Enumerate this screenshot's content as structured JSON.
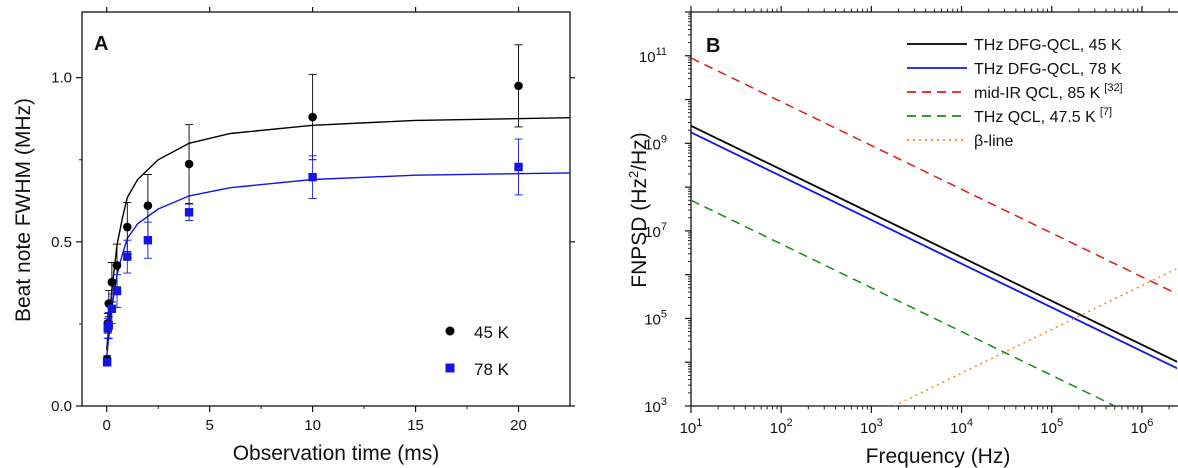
{
  "chart_data": [
    {
      "type": "scatter",
      "panel_label": "A",
      "xlabel": "Observation time (ms)",
      "ylabel": "Beat note FWHM (MHz)",
      "xlim": [
        -1.2,
        22.5
      ],
      "ylim": [
        0.0,
        1.2
      ],
      "xticks": [
        0,
        5,
        10,
        15,
        20
      ],
      "yticks": [
        0.0,
        0.5,
        1.0
      ],
      "ytick_labels": [
        "0.0",
        "0.5",
        "1.0"
      ],
      "legend_position": "bottom-right",
      "series": [
        {
          "name": "45 K",
          "color": "#000000",
          "marker": "circle",
          "x": [
            0.02,
            0.05,
            0.1,
            0.25,
            0.5,
            1,
            2,
            4,
            10,
            20
          ],
          "y": [
            0.143,
            0.252,
            0.312,
            0.377,
            0.428,
            0.545,
            0.61,
            0.737,
            0.88,
            0.975
          ],
          "err_plus": [
            0.01,
            0.03,
            0.04,
            0.06,
            0.065,
            0.075,
            0.095,
            0.12,
            0.13,
            0.125
          ],
          "err_minus": [
            0.01,
            0.03,
            0.04,
            0.06,
            0.065,
            0.075,
            0.095,
            0.12,
            0.13,
            0.125
          ],
          "fit_y": [
            0.17,
            0.355,
            0.49,
            0.57,
            0.635,
            0.69,
            0.75,
            0.8,
            0.83,
            0.855,
            0.87,
            0.878
          ]
        },
        {
          "name": "78 K",
          "color": "#1414e6",
          "marker": "square",
          "x": [
            0.02,
            0.05,
            0.1,
            0.25,
            0.5,
            1,
            2,
            4,
            10,
            20
          ],
          "y": [
            0.133,
            0.237,
            0.245,
            0.296,
            0.35,
            0.455,
            0.505,
            0.59,
            0.697,
            0.728
          ],
          "err_plus": [
            0.008,
            0.03,
            0.04,
            0.045,
            0.05,
            0.05,
            0.055,
            0.025,
            0.065,
            0.085
          ],
          "err_minus": [
            0.008,
            0.03,
            0.04,
            0.045,
            0.05,
            0.05,
            0.055,
            0.025,
            0.065,
            0.085
          ],
          "fit_y": [
            0.15,
            0.3,
            0.4,
            0.46,
            0.51,
            0.555,
            0.6,
            0.64,
            0.665,
            0.69,
            0.703,
            0.71
          ]
        }
      ],
      "fit_x": [
        0,
        0.25,
        0.5,
        0.75,
        1,
        1.5,
        2.5,
        4,
        6,
        10,
        15,
        22.5
      ]
    },
    {
      "type": "line",
      "panel_label": "B",
      "xlabel": "Frequency (Hz)",
      "ylabel": "FNPSD (Hz²/Hz)",
      "ylabel_main": "FNPSD (Hz",
      "ylabel_sup": "2",
      "ylabel_tail": "/Hz)",
      "xscale": "log",
      "yscale": "log",
      "xlim_log10": [
        1,
        6.4
      ],
      "ylim_log10": [
        3,
        12
      ],
      "xtick_base": "10",
      "xtick_exponents": [
        "1",
        "2",
        "3",
        "4",
        "5",
        "6"
      ],
      "ytick_base": "10",
      "ytick_exponents": [
        "3",
        "5",
        "7",
        "9",
        "11"
      ],
      "legend_position": "top-right",
      "series": [
        {
          "name": "THz DFG-QCL, 45 K",
          "ref": "",
          "color": "#000000",
          "dash": "solid",
          "log10_x": [
            1,
            6.4
          ],
          "log10_y": [
            9.4,
            4.0
          ]
        },
        {
          "name": "THz DFG-QCL, 78 K",
          "ref": "",
          "color": "#1414e6",
          "dash": "solid",
          "log10_x": [
            1,
            6.4
          ],
          "log10_y": [
            9.25,
            3.85
          ]
        },
        {
          "name": "mid-IR QCL, 85 K",
          "ref": "[32]",
          "color": "#e0191e",
          "dash": "dashed",
          "log10_x": [
            1,
            6.4
          ],
          "log10_y": [
            10.95,
            5.55
          ]
        },
        {
          "name": "THz QCL, 47.5 K",
          "ref": "[7]",
          "color": "#1a8a1a",
          "dash": "dashed",
          "log10_x": [
            1,
            5.7
          ],
          "log10_y": [
            7.7,
            3.0
          ]
        },
        {
          "name": "β-line",
          "ref": "",
          "color": "#f08c14",
          "dash": "dotted",
          "log10_x": [
            3.25,
            6.4
          ],
          "log10_y": [
            3.0,
            6.15
          ]
        }
      ]
    }
  ]
}
